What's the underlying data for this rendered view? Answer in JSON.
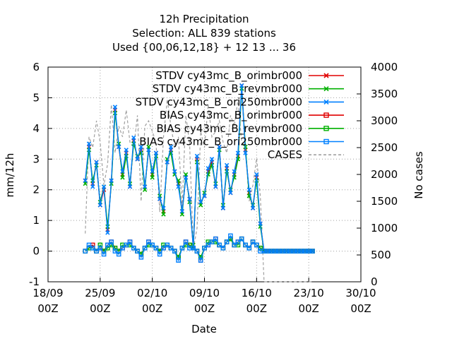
{
  "chart_data": {
    "type": "line",
    "title": [
      "12h Precipitation",
      "Selection: ALL     839 stations",
      "Used {00,06,12,18} + 12 13 ... 36"
    ],
    "xlabel": "Date",
    "ylabel": "mm/12h",
    "y2label": "No cases",
    "ylim": [
      -1,
      6
    ],
    "y2lim": [
      0,
      4000
    ],
    "yticks": [
      -1,
      0,
      1,
      2,
      3,
      4,
      5,
      6
    ],
    "y2ticks": [
      0,
      500,
      1000,
      1500,
      2000,
      2500,
      3000,
      3500,
      4000
    ],
    "xlim": [
      "2022-09-18 00Z",
      "2022-10-30 00Z"
    ],
    "xticks": [
      {
        "date": "18/09",
        "hour": "00Z"
      },
      {
        "date": "25/09",
        "hour": "00Z"
      },
      {
        "date": "02/10",
        "hour": "00Z"
      },
      {
        "date": "09/10",
        "hour": "00Z"
      },
      {
        "date": "16/10",
        "hour": "00Z"
      },
      {
        "date": "23/10",
        "hour": "00Z"
      },
      {
        "date": "30/10",
        "hour": "00Z"
      }
    ],
    "grid": true,
    "legend_position": "top-right",
    "x_day_offsets": [
      5.0,
      5.5,
      6.0,
      6.5,
      7.0,
      7.5,
      8.0,
      8.5,
      9.0,
      9.5,
      10.0,
      10.5,
      11.0,
      11.5,
      12.0,
      12.5,
      13.0,
      13.5,
      14.0,
      14.5,
      15.0,
      15.5,
      16.0,
      16.5,
      17.0,
      17.5,
      18.0,
      18.5,
      19.0,
      19.5,
      20.0,
      20.5,
      21.0,
      21.5,
      22.0,
      22.5,
      23.0,
      23.5,
      24.0,
      24.5,
      25.0,
      25.5,
      26.0,
      26.5,
      27.0,
      27.5,
      28.0,
      28.5,
      29.0,
      29.5,
      30.0,
      30.5,
      31.0,
      31.5,
      32.0,
      32.5,
      33.0,
      33.5,
      34.0,
      34.5,
      35.0,
      35.5
    ],
    "series": [
      {
        "name": "STDV cy43mc_B_orimbr000",
        "color": "#e00000",
        "marker": "x",
        "axis": "y1",
        "values": [
          2.3,
          3.4,
          2.2,
          2.9,
          1.5,
          2.0,
          0.7,
          2.3,
          4.6,
          3.4,
          2.5,
          3.2,
          2.1,
          3.6,
          3.0,
          3.3,
          2.1,
          3.3,
          2.5,
          3.2,
          1.7,
          1.3,
          2.9,
          3.3,
          2.6,
          2.2,
          1.3,
          2.4,
          1.7,
          0.1,
          3.0,
          1.6,
          1.8,
          2.6,
          2.9,
          2.1,
          3.4,
          1.4,
          2.7,
          1.9,
          2.5,
          3.1,
          5.4,
          3.3,
          1.9,
          1.4,
          2.4,
          0.9,
          0,
          0,
          0,
          0,
          0,
          0,
          0,
          0,
          0,
          0,
          0,
          0,
          0,
          0
        ]
      },
      {
        "name": "STDV cy43mc_B_revmbr000",
        "color": "#00b000",
        "marker": "x",
        "axis": "y1",
        "values": [
          2.2,
          3.3,
          2.3,
          2.8,
          1.6,
          2.1,
          0.8,
          2.2,
          4.5,
          3.5,
          2.4,
          3.1,
          2.2,
          3.5,
          3.1,
          3.2,
          2.0,
          3.4,
          2.4,
          3.1,
          1.8,
          1.2,
          3.0,
          3.2,
          2.5,
          2.3,
          1.2,
          2.5,
          1.6,
          0.2,
          2.9,
          1.5,
          1.9,
          2.5,
          2.8,
          2.2,
          3.3,
          1.5,
          2.6,
          2.0,
          2.4,
          3.0,
          5.3,
          3.4,
          1.8,
          1.5,
          2.3,
          0.8,
          0,
          0,
          0,
          0,
          0,
          0,
          0,
          0,
          0,
          0,
          0,
          0,
          0,
          0
        ]
      },
      {
        "name": "STDV cy43mc_B_ori250mbr000",
        "color": "#0080ff",
        "marker": "x",
        "axis": "y1",
        "values": [
          2.3,
          3.5,
          2.1,
          2.9,
          1.5,
          2.1,
          0.6,
          2.3,
          4.7,
          3.4,
          2.6,
          3.3,
          2.1,
          3.7,
          3.0,
          3.4,
          2.1,
          3.3,
          2.6,
          3.2,
          1.7,
          1.4,
          2.9,
          3.4,
          2.6,
          2.1,
          1.3,
          2.4,
          1.7,
          0.1,
          3.1,
          1.6,
          1.8,
          2.7,
          3.0,
          2.1,
          3.4,
          1.4,
          2.8,
          1.9,
          2.6,
          3.2,
          5.4,
          3.2,
          2.0,
          1.4,
          2.5,
          0.9,
          0,
          0,
          0,
          0,
          0,
          0,
          0,
          0,
          0,
          0,
          0,
          0,
          0,
          0
        ]
      },
      {
        "name": "BIAS cy43mc_B_orimbr000",
        "color": "#e00000",
        "marker": "square",
        "axis": "y1",
        "values": [
          0.0,
          0.1,
          0.2,
          0.0,
          0.1,
          0.0,
          0.2,
          0.3,
          0.1,
          0.0,
          0.1,
          0.2,
          0.3,
          0.1,
          0.0,
          -0.1,
          0.1,
          0.3,
          0.2,
          0.1,
          0.0,
          0.1,
          0.2,
          0.1,
          0.0,
          -0.2,
          0.1,
          0.3,
          0.2,
          0.1,
          0.0,
          -0.3,
          0.1,
          0.2,
          0.3,
          0.4,
          0.2,
          0.1,
          0.3,
          0.4,
          0.2,
          0.3,
          0.4,
          0.2,
          0.1,
          0.3,
          0.2,
          0.1,
          0,
          0,
          0,
          0,
          0,
          0,
          0,
          0,
          0,
          0,
          0,
          0,
          0,
          0
        ]
      },
      {
        "name": "BIAS cy43mc_B_revmbr000",
        "color": "#00b000",
        "marker": "square",
        "axis": "y1",
        "values": [
          0.0,
          0.1,
          0.1,
          0.0,
          0.2,
          0.0,
          0.1,
          0.2,
          0.1,
          0.0,
          0.2,
          0.2,
          0.2,
          0.1,
          0.0,
          -0.1,
          0.1,
          0.2,
          0.2,
          0.1,
          0.0,
          0.2,
          0.2,
          0.1,
          0.0,
          -0.2,
          0.1,
          0.2,
          0.2,
          0.1,
          0.0,
          -0.2,
          0.1,
          0.3,
          0.3,
          0.3,
          0.2,
          0.1,
          0.3,
          0.4,
          0.2,
          0.2,
          0.4,
          0.2,
          0.1,
          0.3,
          0.2,
          0.1,
          0,
          0,
          0,
          0,
          0,
          0,
          0,
          0,
          0,
          0,
          0,
          0,
          0,
          0
        ]
      },
      {
        "name": "BIAS cy43mc_B_ori250mbr000",
        "color": "#0080ff",
        "marker": "square",
        "axis": "y1",
        "values": [
          0.0,
          0.2,
          0.1,
          0.0,
          0.1,
          -0.1,
          0.2,
          0.3,
          0.0,
          -0.1,
          0.1,
          0.2,
          0.3,
          0.1,
          0.0,
          -0.2,
          0.1,
          0.3,
          0.2,
          0.1,
          -0.1,
          0.1,
          0.2,
          0.1,
          0.0,
          -0.3,
          0.1,
          0.3,
          0.1,
          0.1,
          0.0,
          -0.3,
          0.1,
          0.2,
          0.3,
          0.4,
          0.2,
          0.1,
          0.3,
          0.5,
          0.2,
          0.3,
          0.4,
          0.2,
          0.1,
          0.3,
          0.2,
          0.0,
          0,
          0,
          0,
          0,
          0,
          0,
          0,
          0,
          0,
          0,
          0,
          0,
          0,
          0
        ]
      },
      {
        "name": "CASES",
        "color": "#a0a0a0",
        "marker": "none",
        "dash": true,
        "axis": "y2",
        "values": [
          900,
          2700,
          2500,
          3000,
          2600,
          1800,
          2200,
          3300,
          2400,
          2900,
          2700,
          3200,
          2600,
          2500,
          3100,
          1500,
          2900,
          3000,
          2800,
          2600,
          1300,
          2700,
          3400,
          2900,
          2500,
          2700,
          1400,
          3100,
          2600,
          600,
          1000,
          2800,
          2500,
          3300,
          2700,
          2800,
          3000,
          2600,
          2400,
          3100,
          2900,
          3400,
          2600,
          2500,
          1500,
          1800,
          2300,
          1600,
          0,
          0,
          0,
          0,
          0,
          0,
          0,
          0,
          0,
          0,
          0,
          0,
          0,
          0
        ]
      }
    ]
  }
}
